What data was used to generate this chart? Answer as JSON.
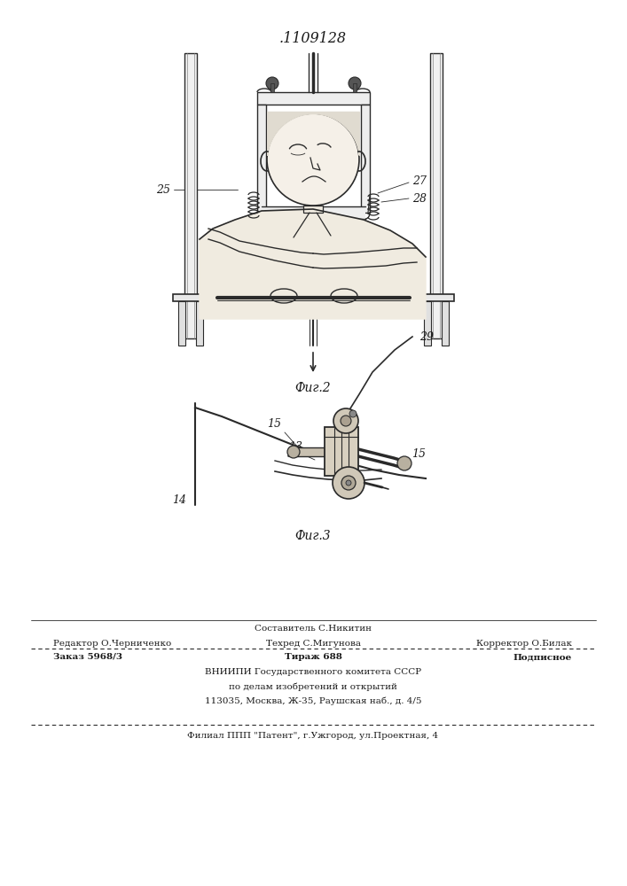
{
  "patent_number": ".1109128",
  "fig2_label": "Фиг.2",
  "fig3_label": "Фиг.3",
  "footer_line1_left": "Редактор О.Черниченко",
  "footer_line1_center_top": "Составитель С.Никитин",
  "footer_line1_center": "Техред С.Мигунова",
  "footer_line1_right": "Корректор О.Билак",
  "footer_line2_col1": "Заказ 5968/3",
  "footer_line2_col2": "Тираж 688",
  "footer_line2_col3": "Подписное",
  "footer_line3": "ВНИИПИ Государственного комитета СССР",
  "footer_line4": "по делам изобретений и открытий",
  "footer_line5": "113035, Москва, Ж-35, Раушская наб., д. 4/5",
  "footer_line6": "Филиал ППП \"Патент\", г.Ужгород, ул.Проектная, 4",
  "bg_color": "#ffffff",
  "line_color": "#2a2a2a",
  "text_color": "#1a1a1a"
}
